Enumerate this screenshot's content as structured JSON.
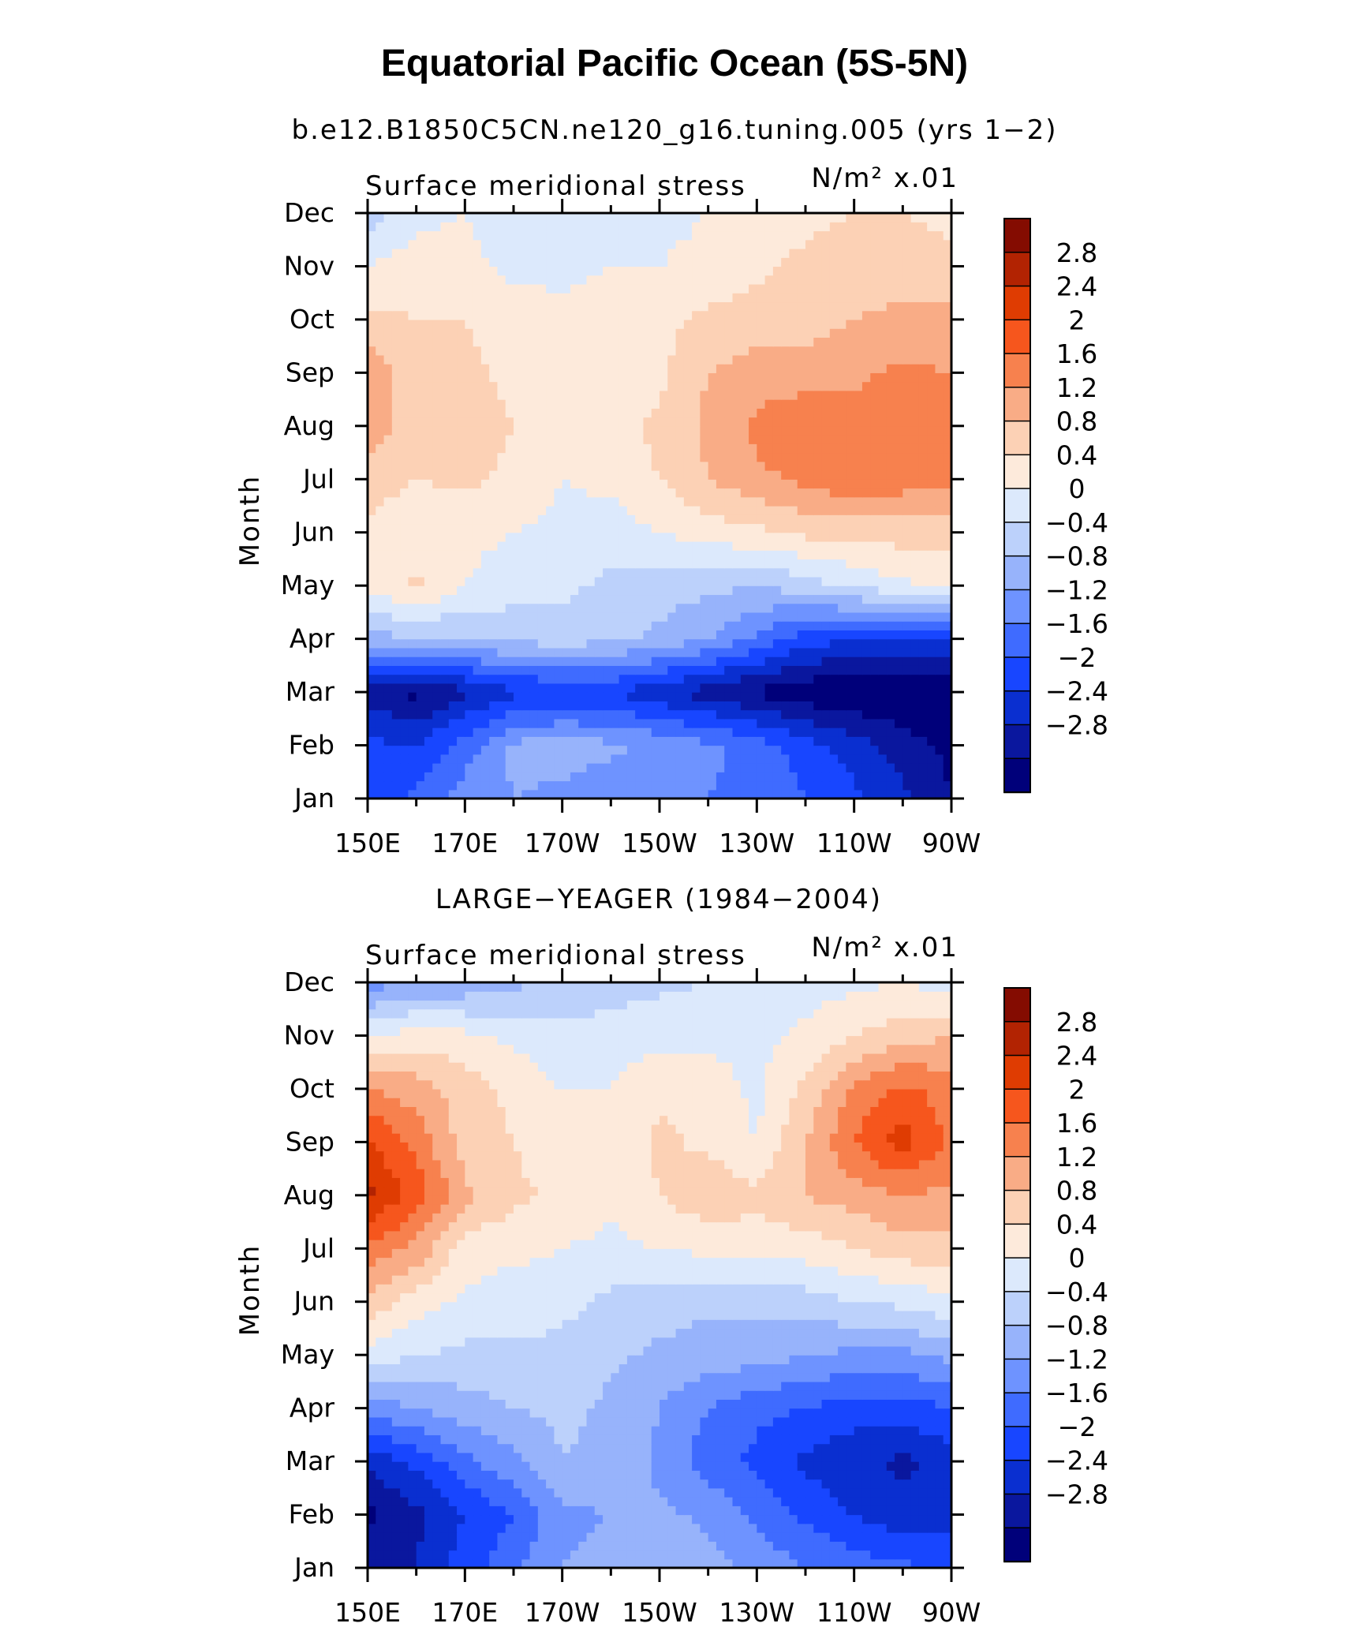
{
  "figure": {
    "title": "Equatorial Pacific Ocean (5S-5N)",
    "colors": {
      "palette": [
        "#00007a",
        "#0a179e",
        "#0a2fd0",
        "#1846ff",
        "#3f6bff",
        "#6e93ff",
        "#97b3fb",
        "#bcd1fb",
        "#dce9fc",
        "#fdeadb",
        "#fcd1b5",
        "#f9ac86",
        "#f7814e",
        "#f6561d",
        "#df3c02",
        "#b22302",
        "#840c01"
      ],
      "frame": "#000000"
    }
  },
  "chart_data": [
    {
      "type": "heatmap",
      "subtitle": "b.e12.B1850C5CN.ne120_g16.tuning.005 (yrs 1−2)",
      "variable": "Surface meridional stress",
      "units_label": "N/m² x.01",
      "ylabel": "Month",
      "x_ticks": [
        "150E",
        "170E",
        "170W",
        "150W",
        "130W",
        "110W",
        "90W"
      ],
      "x": [
        150,
        160,
        170,
        180,
        190,
        200,
        210,
        220,
        230,
        240,
        250,
        260,
        270
      ],
      "y": [
        "Jan",
        "Feb",
        "Mar",
        "Apr",
        "May",
        "Jun",
        "Jul",
        "Aug",
        "Sep",
        "Oct",
        "Nov",
        "Dec"
      ],
      "colorbar_levels": [
        -2.8,
        -2.4,
        -2,
        -1.6,
        -1.2,
        -0.8,
        -0.4,
        0,
        0.4,
        0.8,
        1.2,
        1.6,
        2,
        2.4,
        2.8
      ],
      "colorbar_labels": [
        "2.8",
        "2.4",
        "2",
        "1.6",
        "1.2",
        "0.8",
        "0.4",
        "0",
        "−0.4",
        "−0.8",
        "−1.2",
        "−1.6",
        "−2",
        "−2.4",
        "−2.8"
      ],
      "values": [
        [
          -1.8,
          -1.5,
          -1.0,
          -0.8,
          -0.9,
          -1.1,
          -1.2,
          -1.2,
          -1.3,
          -1.6,
          -1.9,
          -2.3,
          -2.8
        ],
        [
          -1.9,
          -2.0,
          -1.4,
          -0.7,
          -0.6,
          -0.7,
          -0.9,
          -1.1,
          -1.4,
          -1.8,
          -2.2,
          -2.6,
          -2.9
        ],
        [
          -2.6,
          -2.9,
          -2.5,
          -2.1,
          -2.0,
          -2.0,
          -2.3,
          -2.6,
          -2.9,
          -3.1,
          -3.2,
          -3.2,
          -3.1
        ],
        [
          -0.5,
          -0.5,
          -0.4,
          -0.3,
          -0.2,
          -0.3,
          -0.5,
          -0.8,
          -1.3,
          -1.8,
          -2.0,
          -2.1,
          -2.1
        ],
        [
          0.5,
          0.9,
          0.4,
          0.2,
          0.1,
          -0.1,
          -0.2,
          -0.3,
          -0.4,
          -0.2,
          0.1,
          0.3,
          0.5
        ],
        [
          0.7,
          0.5,
          0.5,
          0.4,
          0.3,
          0.2,
          0.4,
          0.6,
          0.7,
          0.9,
          0.9,
          1.0,
          1.0
        ],
        [
          1.0,
          0.8,
          0.9,
          0.7,
          0.4,
          0.5,
          0.8,
          1.2,
          1.5,
          1.7,
          2.0,
          1.8,
          1.7
        ],
        [
          1.4,
          1.0,
          1.0,
          0.8,
          0.6,
          0.6,
          0.9,
          1.3,
          1.7,
          1.9,
          1.8,
          1.9,
          1.8
        ],
        [
          1.5,
          0.9,
          0.9,
          0.7,
          0.6,
          0.6,
          0.7,
          1.2,
          1.4,
          1.4,
          1.5,
          1.7,
          1.6
        ],
        [
          0.9,
          0.8,
          0.8,
          0.6,
          0.5,
          0.6,
          0.7,
          0.9,
          1.0,
          1.0,
          1.2,
          1.3,
          1.3
        ],
        [
          0.4,
          0.6,
          0.5,
          0.3,
          0.3,
          0.4,
          0.4,
          0.5,
          0.7,
          0.9,
          1.0,
          1.0,
          0.9
        ],
        [
          -0.2,
          0.3,
          0.4,
          0.2,
          0.2,
          0.3,
          0.3,
          0.4,
          0.5,
          0.7,
          0.8,
          0.8,
          0.7
        ]
      ]
    },
    {
      "type": "heatmap",
      "subtitle": "LARGE−YEAGER (1984−2004)",
      "variable": "Surface meridional stress",
      "units_label": "N/m² x.01",
      "ylabel": "Month",
      "x_ticks": [
        "150E",
        "170E",
        "170W",
        "150W",
        "130W",
        "110W",
        "90W"
      ],
      "x": [
        150,
        160,
        170,
        180,
        190,
        200,
        210,
        220,
        230,
        240,
        250,
        260,
        270
      ],
      "y": [
        "Jan",
        "Feb",
        "Mar",
        "Apr",
        "May",
        "Jun",
        "Jul",
        "Aug",
        "Sep",
        "Oct",
        "Nov",
        "Dec"
      ],
      "colorbar_levels": [
        -2.8,
        -2.4,
        -2,
        -1.6,
        -1.2,
        -0.8,
        -0.4,
        0,
        0.4,
        0.8,
        1.2,
        1.6,
        2,
        2.4,
        2.8
      ],
      "colorbar_labels": [
        "2.8",
        "2.4",
        "2",
        "1.6",
        "1.2",
        "0.8",
        "0.4",
        "0",
        "−0.4",
        "−0.8",
        "−1.2",
        "−1.6",
        "−2",
        "−2.4",
        "−2.8"
      ],
      "values": [
        [
          -2.6,
          -2.4,
          -1.8,
          -1.3,
          -0.8,
          -0.7,
          -0.4,
          -0.6,
          -0.9,
          -1.2,
          -1.4,
          -1.5,
          -1.7
        ],
        [
          -2.9,
          -2.5,
          -2.0,
          -1.6,
          -0.9,
          -0.8,
          -0.7,
          -0.9,
          -1.3,
          -1.7,
          -2.0,
          -2.3,
          -2.2
        ],
        [
          -2.3,
          -1.9,
          -1.3,
          -0.9,
          -0.4,
          -0.5,
          -0.9,
          -1.4,
          -1.7,
          -2.1,
          -2.3,
          -2.5,
          -2.2
        ],
        [
          -1.0,
          -0.8,
          -0.6,
          -0.4,
          -0.3,
          -0.5,
          -0.8,
          -1.2,
          -1.5,
          -1.6,
          -1.8,
          -1.8,
          -1.6
        ],
        [
          0.2,
          0.0,
          -0.1,
          -0.1,
          -0.1,
          -0.3,
          -0.5,
          -0.6,
          -0.6,
          -0.8,
          -0.9,
          -0.9,
          -0.7
        ],
        [
          1.1,
          0.6,
          0.3,
          0.2,
          0.1,
          -0.1,
          -0.2,
          -0.3,
          -0.3,
          -0.2,
          0.0,
          0.1,
          0.3
        ],
        [
          1.9,
          1.5,
          0.6,
          0.5,
          0.4,
          0.3,
          0.4,
          0.5,
          0.6,
          0.6,
          0.8,
          1.0,
          1.1
        ],
        [
          2.9,
          2.2,
          1.3,
          0.9,
          0.7,
          0.5,
          0.8,
          1.1,
          0.9,
          1.2,
          1.4,
          1.6,
          1.5
        ],
        [
          2.5,
          1.9,
          1.0,
          0.8,
          0.5,
          0.5,
          0.9,
          0.7,
          0.4,
          1.2,
          2.0,
          2.6,
          1.9
        ],
        [
          1.6,
          1.4,
          1.0,
          0.7,
          0.4,
          0.4,
          0.7,
          0.6,
          0.3,
          0.9,
          1.7,
          2.1,
          1.8
        ],
        [
          0.4,
          0.6,
          0.5,
          0.3,
          0.1,
          0.2,
          0.3,
          0.3,
          0.3,
          0.5,
          0.8,
          1.0,
          1.2
        ],
        [
          -1.0,
          -0.8,
          -0.7,
          -0.5,
          -0.3,
          -0.2,
          -0.1,
          0.0,
          0.1,
          0.2,
          0.3,
          0.4,
          0.2
        ]
      ]
    }
  ]
}
